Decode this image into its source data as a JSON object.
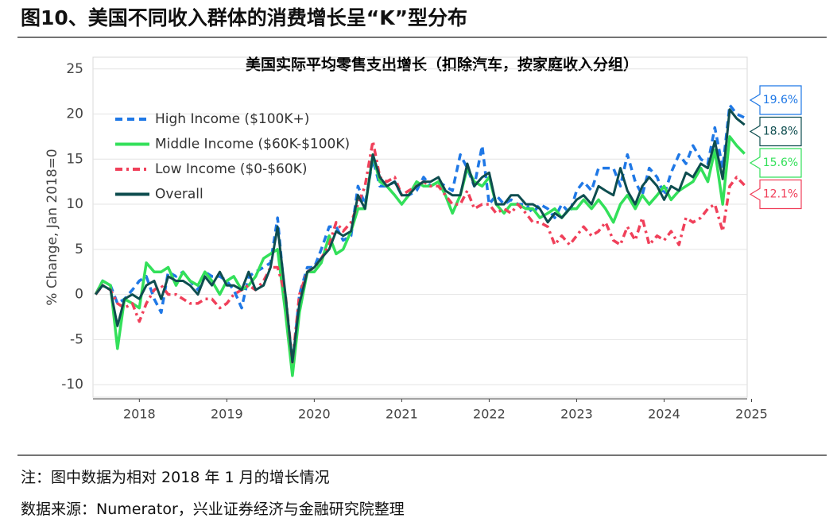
{
  "figure_title": "图10、美国不同收入群体的消费增长呈“K”型分布",
  "chart_data": {
    "type": "line",
    "title": "美国实际平均零售支出增长（扣除汽车，按家庭收入分组）",
    "y_label": "% Change, Jan 2018=0",
    "x": [
      2018.0,
      2018.08,
      2018.17,
      2018.25,
      2018.33,
      2018.42,
      2018.5,
      2018.58,
      2018.67,
      2018.75,
      2018.83,
      2018.92,
      2019.0,
      2019.08,
      2019.17,
      2019.25,
      2019.33,
      2019.42,
      2019.5,
      2019.58,
      2019.67,
      2019.75,
      2019.83,
      2019.92,
      2020.0,
      2020.08,
      2020.17,
      2020.25,
      2020.33,
      2020.42,
      2020.5,
      2020.58,
      2020.67,
      2020.75,
      2020.83,
      2020.92,
      2021.0,
      2021.08,
      2021.17,
      2021.25,
      2021.33,
      2021.42,
      2021.5,
      2021.58,
      2021.67,
      2021.75,
      2021.83,
      2021.92,
      2022.0,
      2022.08,
      2022.17,
      2022.25,
      2022.33,
      2022.42,
      2022.5,
      2022.58,
      2022.67,
      2022.75,
      2022.83,
      2022.92,
      2023.0,
      2023.08,
      2023.17,
      2023.25,
      2023.33,
      2023.42,
      2023.5,
      2023.58,
      2023.67,
      2023.75,
      2023.83,
      2023.92,
      2024.0,
      2024.08,
      2024.17,
      2024.25,
      2024.33,
      2024.42,
      2024.5,
      2024.58,
      2024.67,
      2024.75,
      2024.83,
      2024.92,
      2025.0,
      2025.08,
      2025.17,
      2025.25,
      2025.33,
      2025.42
    ],
    "xlim": [
      2017.97,
      2025.45
    ],
    "xticks": [
      {
        "value": 2018.5,
        "label": "2018"
      },
      {
        "value": 2019.5,
        "label": "2019"
      },
      {
        "value": 2020.5,
        "label": "2020"
      },
      {
        "value": 2021.5,
        "label": "2021"
      },
      {
        "value": 2022.5,
        "label": "2022"
      },
      {
        "value": 2023.5,
        "label": "2023"
      },
      {
        "value": 2024.5,
        "label": "2024"
      },
      {
        "value": 2025.5,
        "label": "2025"
      }
    ],
    "ylim": [
      -11.4,
      26.3
    ],
    "yticks": [
      -10,
      -5,
      0,
      5,
      10,
      15,
      20,
      25
    ],
    "grid": true,
    "legend": "top-left",
    "series": [
      {
        "name": "High Income ($100K+)",
        "color": "#1f78e6",
        "style": "dashed",
        "end_label": "19.6%",
        "values": [
          0,
          1.5,
          1,
          -1,
          -0.5,
          0.5,
          1.5,
          2,
          -0.5,
          -2,
          2.5,
          2,
          2.5,
          1.5,
          0.5,
          2.5,
          2,
          2,
          1.5,
          0.5,
          -1.5,
          2,
          2.5,
          3,
          3.5,
          8.5,
          -1,
          -8,
          0,
          3,
          3,
          5,
          7.5,
          7.5,
          6,
          6.5,
          12,
          10,
          15,
          12,
          12,
          12.5,
          11,
          11,
          11.5,
          13,
          12,
          12.5,
          12,
          11.5,
          15.5,
          14,
          12,
          16.5,
          10,
          11,
          10,
          10.5,
          10,
          10,
          9,
          10,
          9.5,
          8.5,
          10,
          9,
          11.5,
          12.5,
          11.5,
          14,
          14,
          14,
          12,
          15.5,
          12.5,
          11,
          14,
          13,
          11,
          13.5,
          15.5,
          14.5,
          16.5,
          15,
          14.5,
          18.5,
          14,
          21,
          20,
          19.6
        ]
      },
      {
        "name": "Middle Income ($60K-$100K)",
        "color": "#33e05a",
        "style": "solid",
        "end_label": "15.6%",
        "values": [
          0,
          1.5,
          1,
          -6,
          -0.5,
          -1,
          -1.5,
          3.5,
          2.5,
          2.5,
          3,
          1,
          2.5,
          1.5,
          1,
          2.5,
          1.5,
          0,
          1.5,
          2,
          0.5,
          1,
          2,
          4,
          4.5,
          5,
          -2,
          -9,
          -2,
          2.5,
          2.5,
          3.5,
          6.5,
          4.5,
          5,
          7,
          9.5,
          9.5,
          15.5,
          12.5,
          12,
          11,
          10,
          11,
          12.5,
          12,
          12,
          12.5,
          11,
          9,
          11,
          14,
          12.5,
          12,
          13,
          10,
          9,
          10,
          10,
          9.5,
          9.5,
          8.5,
          9,
          9.5,
          8.5,
          9.5,
          9.5,
          10.5,
          9.5,
          10.5,
          9.5,
          8,
          10,
          11,
          9.5,
          11,
          10,
          11,
          12,
          10.5,
          11.5,
          12,
          12.5,
          14,
          12.5,
          16,
          10,
          17.5,
          16.5,
          15.6
        ]
      },
      {
        "name": "Low Income ($0-$60K)",
        "color": "#f0405a",
        "style": "dashdot",
        "end_label": "12.1%",
        "values": [
          0,
          1,
          0.5,
          -1,
          -1.5,
          -1,
          -3,
          -1,
          0.5,
          1,
          0,
          0,
          -0.5,
          -1,
          -1,
          -0.5,
          -0.5,
          -1.5,
          -1,
          0,
          0.5,
          1,
          0.5,
          1.5,
          3,
          3,
          0,
          -7.5,
          0,
          2.5,
          3,
          4,
          5.5,
          8,
          7,
          8,
          10,
          12,
          17,
          13,
          12.5,
          13,
          11,
          11.5,
          12,
          12.5,
          12,
          12,
          11,
          10,
          10,
          11.5,
          9.5,
          10,
          10,
          9,
          9.5,
          9,
          10,
          9,
          8,
          8,
          7.5,
          5.5,
          6.5,
          5.5,
          6.5,
          7.5,
          6.5,
          7,
          8,
          6,
          5.5,
          7.5,
          6,
          8.5,
          5.5,
          6.5,
          6,
          7,
          5.5,
          8.5,
          8,
          8.5,
          9.5,
          10,
          7,
          12,
          13,
          12.1
        ]
      },
      {
        "name": "Overall",
        "color": "#0e4d4f",
        "style": "solid",
        "end_label": "18.8%",
        "values": [
          0,
          1,
          0.5,
          -3.5,
          -0.5,
          0,
          -0.5,
          1,
          1.5,
          -0.5,
          2,
          1.5,
          1.5,
          1,
          0,
          2,
          1,
          2.5,
          1,
          1,
          0.5,
          2.5,
          0.5,
          1,
          3,
          7.5,
          0,
          -7.5,
          -1,
          2.5,
          3,
          4,
          5,
          7,
          6.5,
          7,
          11,
          9.5,
          15.5,
          13,
          12,
          12.5,
          11,
          11,
          12,
          12.5,
          12.5,
          13,
          11.5,
          11,
          11,
          14.5,
          12,
          13,
          13.5,
          10,
          10,
          11,
          11,
          10,
          10,
          9.5,
          8,
          9,
          8.5,
          9.5,
          10.5,
          11,
          10,
          12,
          11.5,
          11,
          14,
          11.5,
          10,
          12,
          13,
          12,
          10.5,
          12,
          11.5,
          13.5,
          13,
          14.5,
          14,
          17,
          12.8,
          20.5,
          19.5,
          18.8
        ]
      }
    ]
  },
  "notes": [
    "注：图中数据为相对 2018 年 1 月的增长情况",
    "数据来源：Numerator，兴业证券经济与金融研究院整理"
  ]
}
